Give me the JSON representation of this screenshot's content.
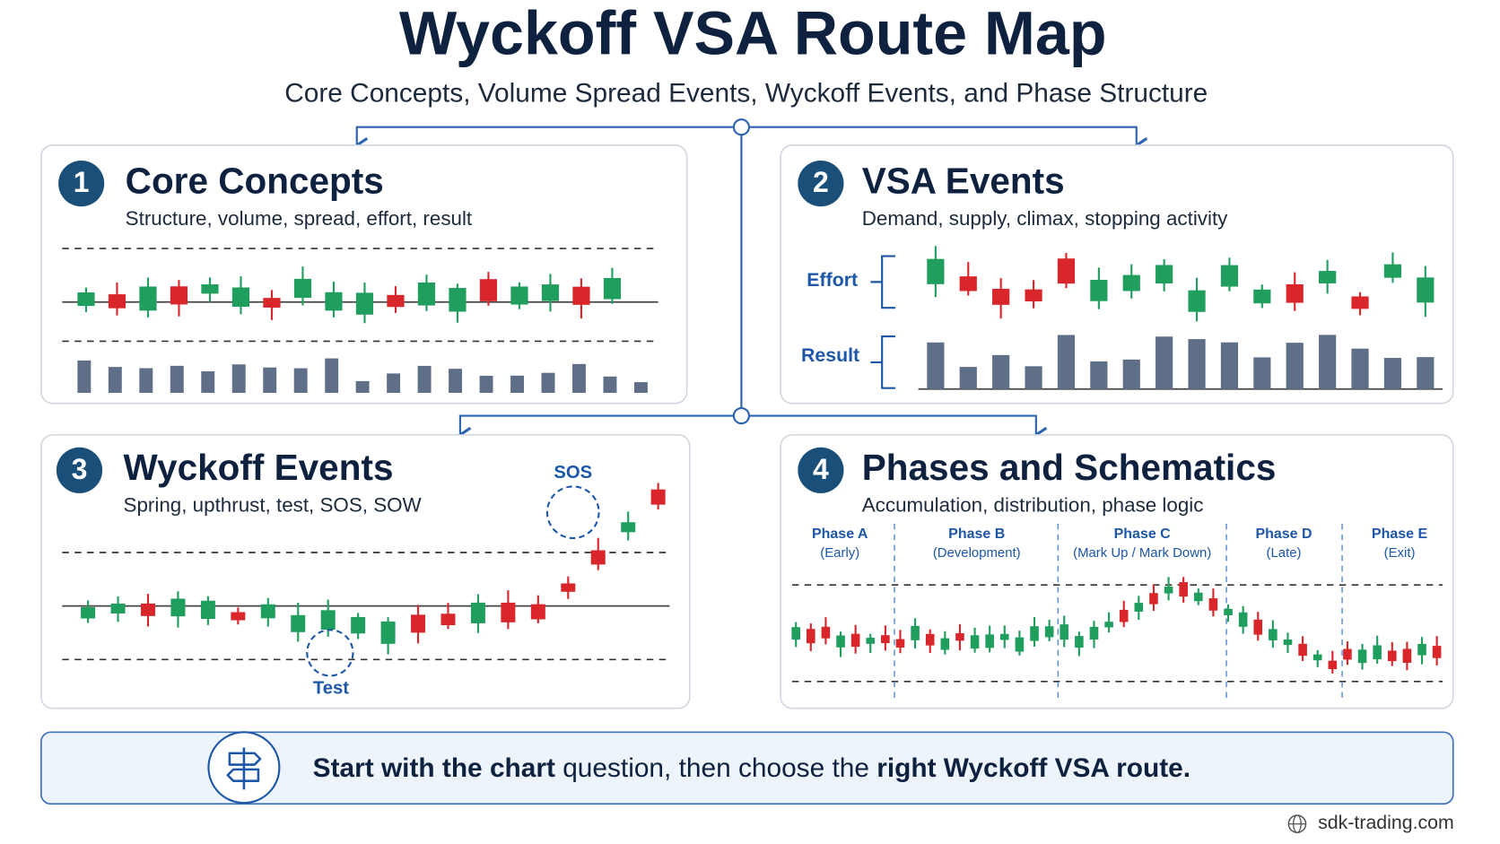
{
  "header": {
    "title": "Wyckoff VSA Route Map",
    "subtitle": "Core Concepts, Volume Spread Events, Wyckoff Events, and Phase Structure"
  },
  "panels": [
    {
      "number": "1",
      "title": "Core Concepts",
      "subtitle": "Structure, volume, spread, effort, result"
    },
    {
      "number": "2",
      "title": "VSA Events",
      "subtitle": "Demand, supply, climax, stopping activity",
      "labels": [
        "Effort",
        "Result"
      ]
    },
    {
      "number": "3",
      "title": "Wyckoff Events",
      "subtitle": "Spring, upthrust, test, SOS, SOW",
      "labels": [
        "SOS",
        "Test"
      ]
    },
    {
      "number": "4",
      "title": "Phases and Schematics",
      "subtitle": "Accumulation, distribution, phase logic",
      "phases": [
        {
          "name": "Phase A",
          "note": "(Early)"
        },
        {
          "name": "Phase B",
          "note": "(Development)"
        },
        {
          "name": "Phase C",
          "note": "(Mark Up / Mark Down)"
        },
        {
          "name": "Phase D",
          "note": "(Late)"
        },
        {
          "name": "Phase E",
          "note": "(Exit)"
        }
      ]
    }
  ],
  "footer": {
    "banner": [
      {
        "text": "Start with the chart",
        "bold": true
      },
      {
        "text": " question, then choose the ",
        "bold": false
      },
      {
        "text": "right Wyckoff VSA route.",
        "bold": true
      }
    ],
    "site": "sdk-trading.com"
  }
}
